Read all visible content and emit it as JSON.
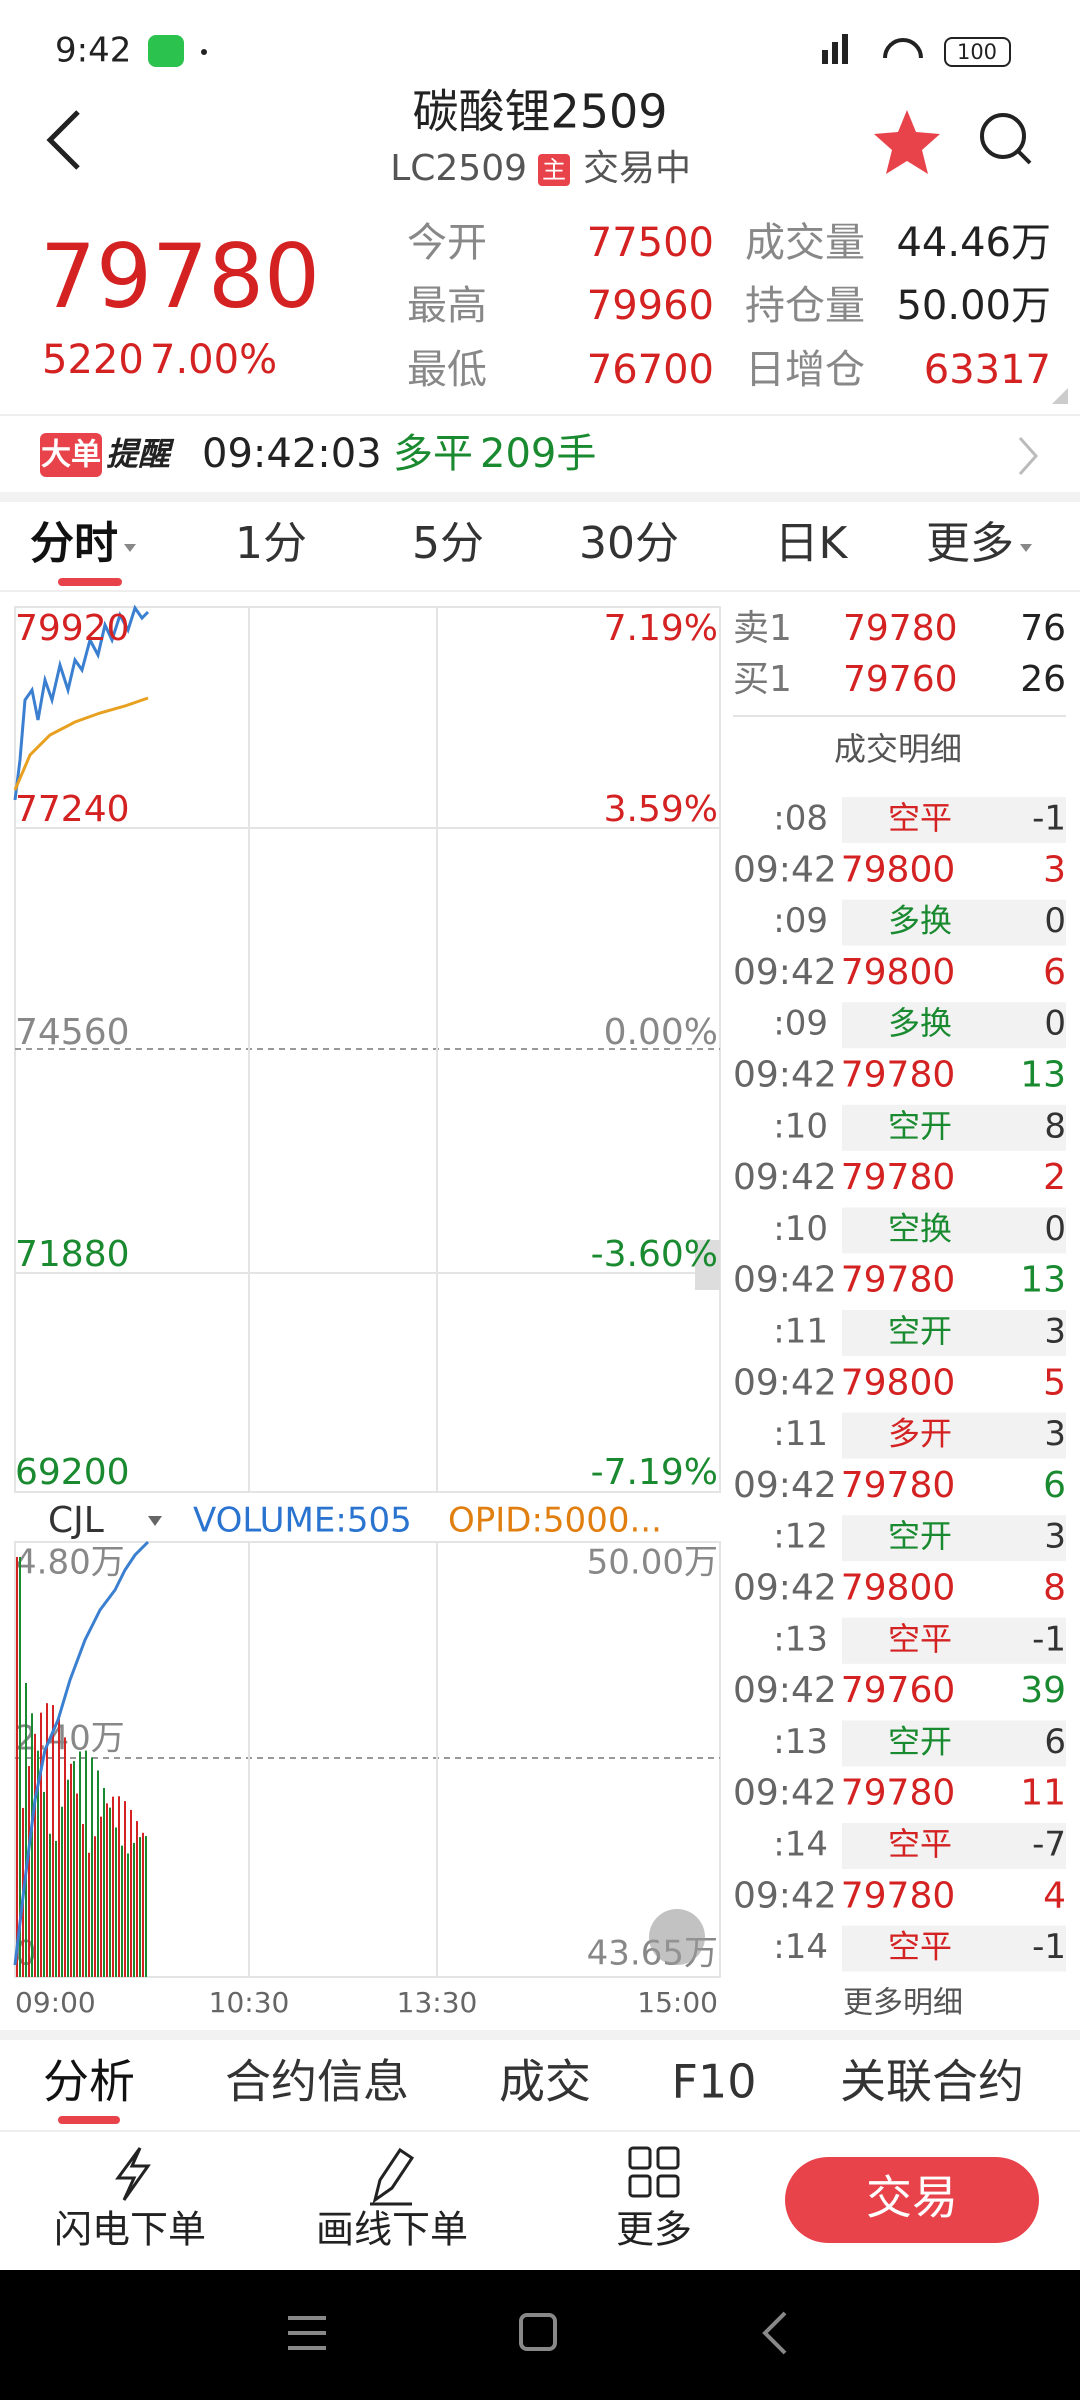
{
  "status": {
    "time": "9:42",
    "battery": "100"
  },
  "header": {
    "title": "碳酸锂2509",
    "code": "LC2509",
    "badge": "主",
    "state": "交易中"
  },
  "quote": {
    "price": "79780",
    "change": "5220",
    "percent": "7.00%",
    "stats": [
      {
        "label": "今开",
        "value": "77500",
        "color": "#d42121"
      },
      {
        "label": "最高",
        "value": "79960",
        "color": "#d42121"
      },
      {
        "label": "最低",
        "value": "76700",
        "color": "#d42121"
      },
      {
        "label": "成交量",
        "value": "44.46万",
        "color": "#222222"
      },
      {
        "label": "持仓量",
        "value": "50.00万",
        "color": "#222222"
      },
      {
        "label": "日增仓",
        "value": "63317",
        "color": "#d42121"
      }
    ]
  },
  "alert": {
    "tag": "大单",
    "tag2": "提醒",
    "time": "09:42:03",
    "type": "多平",
    "qty": "209手"
  },
  "tabs": [
    "分时",
    "1分",
    "5分",
    "30分",
    "日K",
    "更多"
  ],
  "chart": {
    "left_labels": [
      "79920",
      "77240",
      "74560",
      "71880",
      "69200"
    ],
    "right_labels": [
      "7.19%",
      "3.59%",
      "0.00%",
      "-3.60%",
      "-7.19%"
    ],
    "label_colors": [
      "#d42121",
      "#d42121",
      "#888888",
      "#1a8a30",
      "#1a8a30"
    ],
    "volume": {
      "indicator": "CJL",
      "vol": "VOLUME:505",
      "opid": "OPID:5000...",
      "left_labels": [
        "4.80万",
        "2.40万",
        "0"
      ],
      "right_labels": [
        "50.00万",
        "43.65万"
      ]
    },
    "times": [
      "09:00",
      "10:30",
      "13:30",
      "15:00"
    ]
  },
  "orderbook": [
    {
      "label": "卖1",
      "price": "79780",
      "qty": "76"
    },
    {
      "label": "买1",
      "price": "79760",
      "qty": "26"
    }
  ],
  "detail_title": "成交明细",
  "trades": [
    {
      "sub_time": ":08",
      "type": "空平",
      "type_color": "#d42121",
      "change": "-1"
    },
    {
      "time": "09:42",
      "price": "79800",
      "qty": "3",
      "qty_color": "#d42121",
      "sub_time": ":09",
      "type": "多换",
      "type_color": "#1a8a30",
      "change": "0"
    },
    {
      "time": "09:42",
      "price": "79800",
      "qty": "6",
      "qty_color": "#d42121",
      "sub_time": ":09",
      "type": "多换",
      "type_color": "#1a8a30",
      "change": "0"
    },
    {
      "time": "09:42",
      "price": "79780",
      "qty": "13",
      "qty_color": "#1a8a30",
      "sub_time": ":10",
      "type": "空开",
      "type_color": "#1a8a30",
      "change": "8"
    },
    {
      "time": "09:42",
      "price": "79780",
      "qty": "2",
      "qty_color": "#d42121",
      "sub_time": ":10",
      "type": "空换",
      "type_color": "#1a8a30",
      "change": "0"
    },
    {
      "time": "09:42",
      "price": "79780",
      "qty": "13",
      "qty_color": "#1a8a30",
      "sub_time": ":11",
      "type": "空开",
      "type_color": "#1a8a30",
      "change": "3"
    },
    {
      "time": "09:42",
      "price": "79800",
      "qty": "5",
      "qty_color": "#d42121",
      "sub_time": ":11",
      "type": "多开",
      "type_color": "#d42121",
      "change": "3"
    },
    {
      "time": "09:42",
      "price": "79780",
      "qty": "6",
      "qty_color": "#1a8a30",
      "sub_time": ":12",
      "type": "空开",
      "type_color": "#1a8a30",
      "change": "3"
    },
    {
      "time": "09:42",
      "price": "79800",
      "qty": "8",
      "qty_color": "#d42121",
      "sub_time": ":13",
      "type": "空平",
      "type_color": "#d42121",
      "change": "-1"
    },
    {
      "time": "09:42",
      "price": "79760",
      "qty": "39",
      "qty_color": "#1a8a30",
      "sub_time": ":13",
      "type": "空开",
      "type_color": "#1a8a30",
      "change": "6"
    },
    {
      "time": "09:42",
      "price": "79780",
      "qty": "11",
      "qty_color": "#d42121",
      "sub_time": ":14",
      "type": "空平",
      "type_color": "#d42121",
      "change": "-7"
    },
    {
      "time": "09:42",
      "price": "79780",
      "qty": "4",
      "qty_color": "#d42121",
      "sub_time": ":14",
      "type": "空平",
      "type_color": "#d42121",
      "change": "-1"
    }
  ],
  "more_detail": "更多明细",
  "bottom_tabs": [
    "分析",
    "合约信息",
    "成交",
    "F10",
    "关联合约"
  ],
  "actions": [
    "闪电下单",
    "画线下单",
    "更多"
  ],
  "trade_button": "交易"
}
